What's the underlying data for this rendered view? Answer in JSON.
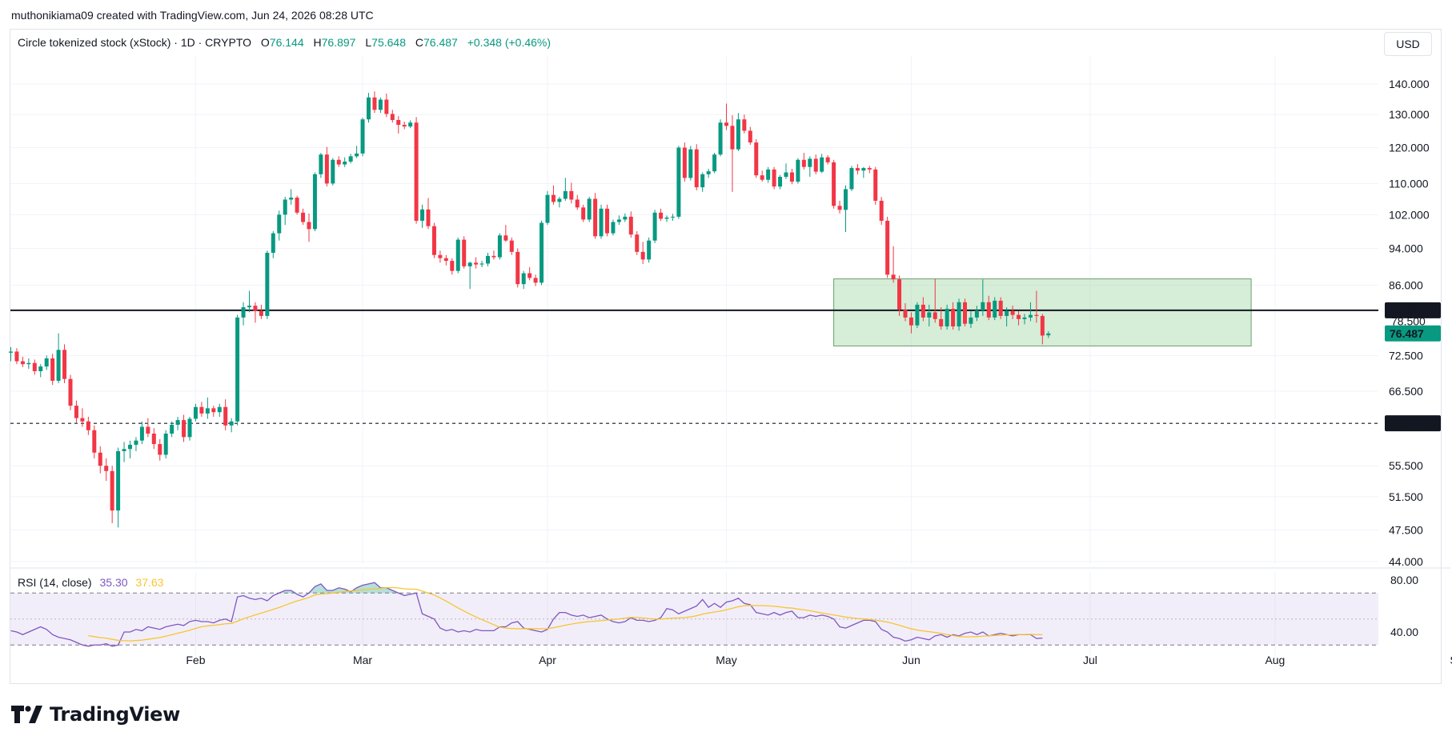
{
  "header": {
    "credit": "muthonikiama09 created with TradingView.com, Jun 24, 2026 08:28 UTC"
  },
  "legend": {
    "symbol": "Circle tokenized stock (xStock) · 1D · CRYPTO",
    "open_label": "O",
    "open": "76.144",
    "high_label": "H",
    "high": "76.897",
    "low_label": "L",
    "low": "75.648",
    "close_label": "C",
    "close": "76.487",
    "change": "+0.348 (+0.46%)"
  },
  "currency": "USD",
  "rsi": {
    "title": "RSI (14, close)",
    "value": "35.30",
    "ma_value": "37.63",
    "ticks": [
      "80.00",
      "40.00"
    ]
  },
  "brand": {
    "name": "TradingView"
  },
  "colors": {
    "up": "#089981",
    "down": "#f23645",
    "rsi": "#7e57c2",
    "rsi_ma": "#f7c531",
    "zone": "#a5d6a7"
  },
  "chart_data": {
    "type": "candlestick",
    "y_scale": "log",
    "y_ticks": [
      "140.000",
      "130.000",
      "120.000",
      "110.000",
      "102.000",
      "94.000",
      "86.000",
      "72.500",
      "66.500",
      "55.500",
      "51.500",
      "47.500",
      "44.000"
    ],
    "x_ticks": [
      "Feb",
      "Mar",
      "Apr",
      "May",
      "Jun",
      "Jul",
      "Aug",
      "Sep"
    ],
    "price_labels": {
      "resistance": "80.898",
      "last": "76.487",
      "support": "61.514",
      "hidden": "78.500"
    },
    "horizontal_lines": [
      {
        "value": 80.898,
        "style": "solid"
      },
      {
        "value": 61.514,
        "style": "dashed"
      }
    ],
    "zone": {
      "from": "2026-05-19",
      "to": "2026-07-28",
      "low": 74.2,
      "high": 87.3
    },
    "ohlc": [
      [
        "2026-01-01",
        73,
        74,
        71.5,
        73.2
      ],
      [
        "2026-01-02",
        73.2,
        73.8,
        71,
        71.5
      ],
      [
        "2026-01-03",
        71.5,
        72.3,
        70.5,
        71
      ],
      [
        "2026-01-04",
        71,
        72,
        70.2,
        71.2
      ],
      [
        "2026-01-05",
        71.2,
        71.8,
        69.2,
        69.8
      ],
      [
        "2026-01-06",
        69.8,
        71,
        68.8,
        70.6
      ],
      [
        "2026-01-07",
        70.6,
        72.5,
        70,
        72
      ],
      [
        "2026-01-08",
        72,
        72.8,
        67.5,
        68.2
      ],
      [
        "2026-01-09",
        68.2,
        76.5,
        67.8,
        73.5
      ],
      [
        "2026-01-10",
        73.5,
        74.5,
        67.8,
        68.5
      ],
      [
        "2026-01-11",
        68.5,
        69.2,
        63.5,
        64.2
      ],
      [
        "2026-01-12",
        64.2,
        65,
        61.5,
        62.3
      ],
      [
        "2026-01-13",
        62.3,
        63.8,
        61,
        61.8
      ],
      [
        "2026-01-14",
        61.8,
        62.5,
        59.8,
        60.5
      ],
      [
        "2026-01-15",
        60.5,
        61.2,
        56.5,
        57.3
      ],
      [
        "2026-01-16",
        57.3,
        58.2,
        54.5,
        55.5
      ],
      [
        "2026-01-17",
        55.5,
        56.5,
        53.5,
        54.8
      ],
      [
        "2026-01-18",
        54.8,
        55.5,
        48.3,
        49.8
      ],
      [
        "2026-01-19",
        49.8,
        58,
        47.8,
        57.5
      ],
      [
        "2026-01-20",
        57.5,
        58.8,
        56,
        57.8
      ],
      [
        "2026-01-21",
        57.8,
        59,
        56.5,
        58.4
      ],
      [
        "2026-01-22",
        58.4,
        59.5,
        57.5,
        59
      ],
      [
        "2026-01-23",
        59,
        61.8,
        58.5,
        61
      ],
      [
        "2026-01-24",
        61,
        62.3,
        59.5,
        60
      ],
      [
        "2026-01-25",
        60,
        60.8,
        57.8,
        58.5
      ],
      [
        "2026-01-26",
        58.5,
        59.2,
        56.2,
        57
      ],
      [
        "2026-01-27",
        57,
        60.5,
        56.5,
        60
      ],
      [
        "2026-01-28",
        60,
        61.8,
        59.5,
        61.3
      ],
      [
        "2026-01-29",
        61.3,
        62.5,
        60.5,
        62
      ],
      [
        "2026-01-30",
        62,
        62.8,
        58.8,
        59.5
      ],
      [
        "2026-01-31",
        59.5,
        62.5,
        59,
        62.2
      ],
      [
        "2026-02-01",
        62.2,
        64.5,
        61.8,
        64
      ],
      [
        "2026-02-02",
        64,
        64.8,
        62.5,
        63
      ],
      [
        "2026-02-03",
        63,
        65.5,
        62.2,
        63.8
      ],
      [
        "2026-02-04",
        63.8,
        64.2,
        62.5,
        63.2
      ],
      [
        "2026-02-05",
        63.2,
        64.5,
        62.5,
        64
      ],
      [
        "2026-02-06",
        64,
        65.2,
        60.5,
        61.2
      ],
      [
        "2026-02-07",
        61.2,
        62.3,
        60.2,
        61.8
      ],
      [
        "2026-02-08",
        61.8,
        80,
        61.2,
        79.5
      ],
      [
        "2026-02-09",
        79.5,
        82.5,
        78,
        81.5
      ],
      [
        "2026-02-10",
        81.5,
        84.8,
        80.5,
        81.8
      ],
      [
        "2026-02-11",
        81.8,
        82.5,
        78.5,
        80.8
      ],
      [
        "2026-02-12",
        80.8,
        82,
        79.2,
        79.8
      ],
      [
        "2026-02-13",
        79.8,
        93.5,
        79.2,
        93
      ],
      [
        "2026-02-14",
        93,
        98,
        91.8,
        97.5
      ],
      [
        "2026-02-15",
        97.5,
        103,
        95.8,
        102
      ],
      [
        "2026-02-16",
        102,
        106.5,
        99.5,
        105.8
      ],
      [
        "2026-02-17",
        105.8,
        108.5,
        104.5,
        106.3
      ],
      [
        "2026-02-18",
        106.3,
        106.8,
        102,
        102.5
      ],
      [
        "2026-02-19",
        102.5,
        103.5,
        99.5,
        100.2
      ],
      [
        "2026-02-20",
        100.2,
        102.3,
        95.5,
        98.5
      ],
      [
        "2026-02-21",
        98.5,
        113,
        98,
        112.5
      ],
      [
        "2026-02-22",
        112.5,
        118.5,
        111.5,
        118
      ],
      [
        "2026-02-23",
        118,
        120.2,
        109.2,
        110
      ],
      [
        "2026-02-24",
        110,
        117,
        109.5,
        116.5
      ],
      [
        "2026-02-25",
        116.5,
        117.5,
        114.5,
        115.2
      ],
      [
        "2026-02-26",
        115.2,
        117.2,
        114.5,
        116
      ],
      [
        "2026-02-27",
        116,
        118.2,
        115.5,
        117.5
      ],
      [
        "2026-02-28",
        117.5,
        120.5,
        117,
        118.3
      ],
      [
        "2026-03-01",
        118.3,
        129,
        117.5,
        128.5
      ],
      [
        "2026-03-02",
        128.5,
        137,
        127.5,
        135.5
      ],
      [
        "2026-03-03",
        135.5,
        137.5,
        130.5,
        131.5
      ],
      [
        "2026-03-04",
        131.5,
        135.5,
        130.5,
        134.8
      ],
      [
        "2026-03-05",
        134.8,
        136.8,
        129.2,
        130.2
      ],
      [
        "2026-03-06",
        130.2,
        131.5,
        127.5,
        128.3
      ],
      [
        "2026-03-07",
        128.3,
        129.5,
        124.2,
        126.8
      ],
      [
        "2026-03-08",
        126.8,
        127.8,
        125.5,
        126.3
      ],
      [
        "2026-03-09",
        126.3,
        128.2,
        125.8,
        127.5
      ],
      [
        "2026-03-10",
        127.5,
        129.2,
        99.8,
        100.5
      ],
      [
        "2026-03-11",
        100.5,
        104.5,
        98.8,
        103.3
      ],
      [
        "2026-03-12",
        103.3,
        106.2,
        98.5,
        99.2
      ],
      [
        "2026-03-13",
        99.2,
        100,
        91.8,
        92.5
      ],
      [
        "2026-03-14",
        92.5,
        93.5,
        90.8,
        91.8
      ],
      [
        "2026-03-15",
        91.8,
        92.5,
        90.2,
        91.2
      ],
      [
        "2026-03-16",
        91.2,
        91.8,
        88.2,
        89
      ],
      [
        "2026-03-17",
        89,
        96.5,
        88.5,
        96
      ],
      [
        "2026-03-18",
        96,
        96.8,
        89.5,
        90
      ],
      [
        "2026-03-19",
        90,
        91,
        85.2,
        90.8
      ],
      [
        "2026-03-20",
        90.8,
        92,
        89.5,
        90.4
      ],
      [
        "2026-03-21",
        90.4,
        91.2,
        89.8,
        90.6
      ],
      [
        "2026-03-22",
        90.6,
        93,
        90,
        92.3
      ],
      [
        "2026-03-23",
        92.3,
        93.5,
        91.5,
        92
      ],
      [
        "2026-03-24",
        92,
        97.5,
        91.5,
        97
      ],
      [
        "2026-03-25",
        97,
        99.5,
        95.5,
        95.8
      ],
      [
        "2026-03-26",
        95.8,
        96.5,
        92.5,
        93.2
      ],
      [
        "2026-03-27",
        93.2,
        94,
        85.5,
        86.2
      ],
      [
        "2026-03-28",
        86.2,
        89,
        85.2,
        88.5
      ],
      [
        "2026-03-29",
        88.5,
        89.8,
        87,
        87.5
      ],
      [
        "2026-03-30",
        87.5,
        88.2,
        85.8,
        86.5
      ],
      [
        "2026-03-31",
        86.5,
        100.5,
        86,
        100
      ],
      [
        "2026-04-01",
        100,
        108,
        99.5,
        107
      ],
      [
        "2026-04-02",
        107,
        109.5,
        104.5,
        105.2
      ],
      [
        "2026-04-03",
        105.2,
        106.5,
        103.8,
        106
      ],
      [
        "2026-04-04",
        106,
        111.5,
        105.5,
        108
      ],
      [
        "2026-04-05",
        108,
        110.2,
        104.8,
        105.8
      ],
      [
        "2026-04-06",
        105.8,
        107,
        103.2,
        103.8
      ],
      [
        "2026-04-07",
        103.8,
        104.5,
        100.2,
        100.8
      ],
      [
        "2026-04-08",
        100.8,
        106.5,
        100.2,
        106
      ],
      [
        "2026-04-09",
        106,
        107.5,
        96.2,
        96.8
      ],
      [
        "2026-04-10",
        96.8,
        104.5,
        96.2,
        103.5
      ],
      [
        "2026-04-11",
        103.5,
        104.5,
        96.8,
        97.5
      ],
      [
        "2026-04-12",
        97.5,
        100.8,
        97,
        100.2
      ],
      [
        "2026-04-13",
        100.2,
        101.8,
        99.5,
        100.8
      ],
      [
        "2026-04-14",
        100.8,
        102.3,
        100.2,
        101.5
      ],
      [
        "2026-04-15",
        101.5,
        102.8,
        96.5,
        97.2
      ],
      [
        "2026-04-16",
        97.2,
        98,
        92.5,
        93.2
      ],
      [
        "2026-04-17",
        93.2,
        95.5,
        90.5,
        91.5
      ],
      [
        "2026-04-18",
        91.5,
        96.5,
        90.8,
        95.8
      ],
      [
        "2026-04-19",
        95.8,
        103.2,
        95.2,
        102.5
      ],
      [
        "2026-04-20",
        102.5,
        103.5,
        100.5,
        101
      ],
      [
        "2026-04-21",
        101,
        101.8,
        100.2,
        101.3
      ],
      [
        "2026-04-22",
        101.3,
        102.2,
        100.5,
        101.5
      ],
      [
        "2026-04-23",
        101.5,
        120.5,
        101,
        120
      ],
      [
        "2026-04-24",
        120,
        121.5,
        110.5,
        111.5
      ],
      [
        "2026-04-25",
        111.5,
        120.5,
        110.8,
        119.5
      ],
      [
        "2026-04-26",
        119.5,
        121,
        108.2,
        109
      ],
      [
        "2026-04-27",
        109,
        113,
        107.8,
        112.5
      ],
      [
        "2026-04-28",
        112.5,
        114,
        111.5,
        113.3
      ],
      [
        "2026-04-29",
        113.3,
        118.5,
        112.8,
        118
      ],
      [
        "2026-04-30",
        118,
        128.5,
        117.5,
        127.5
      ],
      [
        "2026-05-01",
        127.5,
        133.5,
        125.2,
        126.5
      ],
      [
        "2026-05-02",
        126.5,
        129.8,
        107.8,
        119.5
      ],
      [
        "2026-05-03",
        119.5,
        130.5,
        119,
        128.5
      ],
      [
        "2026-05-04",
        128.5,
        130,
        124.2,
        125
      ],
      [
        "2026-05-05",
        125,
        126.2,
        120.8,
        121.5
      ],
      [
        "2026-05-06",
        121.5,
        122.5,
        111.5,
        112.2
      ],
      [
        "2026-05-07",
        112.2,
        113.5,
        110.5,
        111
      ],
      [
        "2026-05-08",
        111,
        114.5,
        110.2,
        113.8
      ],
      [
        "2026-05-09",
        113.8,
        114.5,
        108.5,
        109.2
      ],
      [
        "2026-05-10",
        109.2,
        112.3,
        108.5,
        111.8
      ],
      [
        "2026-05-11",
        111.8,
        115.5,
        111.2,
        113
      ],
      [
        "2026-05-12",
        113,
        114,
        109.8,
        110.5
      ],
      [
        "2026-05-13",
        110.5,
        117,
        110,
        116.5
      ],
      [
        "2026-05-14",
        116.5,
        118.5,
        113.8,
        114.5
      ],
      [
        "2026-05-15",
        114.5,
        117.5,
        111.8,
        116.8
      ],
      [
        "2026-05-16",
        116.8,
        118,
        112.5,
        113.2
      ],
      [
        "2026-05-17",
        113.2,
        118.2,
        112.8,
        117.2
      ],
      [
        "2026-05-18",
        117.2,
        117.8,
        115.2,
        115.8
      ],
      [
        "2026-05-19",
        115.8,
        116.5,
        103.5,
        104.2
      ],
      [
        "2026-05-20",
        104.2,
        105.5,
        102.3,
        103.2
      ],
      [
        "2026-05-21",
        103.2,
        109.5,
        97.8,
        108.5
      ],
      [
        "2026-05-22",
        108.5,
        114.8,
        108,
        114.2
      ],
      [
        "2026-05-23",
        114.2,
        115.3,
        112.5,
        113.5
      ],
      [
        "2026-05-24",
        113.5,
        114.5,
        111.5,
        114.2
      ],
      [
        "2026-05-25",
        114.2,
        114.8,
        112.8,
        113.8
      ],
      [
        "2026-05-26",
        113.8,
        114.5,
        104.5,
        105.5
      ],
      [
        "2026-05-27",
        105.5,
        106.5,
        99.5,
        100.5
      ],
      [
        "2026-05-28",
        100.5,
        101.5,
        87.5,
        88.2
      ],
      [
        "2026-05-29",
        88.2,
        94.5,
        86.5,
        87.2
      ],
      [
        "2026-05-30",
        87.2,
        88,
        79.8,
        81
      ],
      [
        "2026-05-31",
        81,
        82.3,
        78.8,
        79.5
      ],
      [
        "2026-06-01",
        79.5,
        80.5,
        76.5,
        78
      ],
      [
        "2026-06-02",
        78,
        82.5,
        77.5,
        82
      ],
      [
        "2026-06-03",
        82,
        83.5,
        78.8,
        79.5
      ],
      [
        "2026-06-04",
        79.5,
        82,
        77.8,
        80.5
      ],
      [
        "2026-06-05",
        80.5,
        87.3,
        78.5,
        79.2
      ],
      [
        "2026-06-06",
        79.2,
        81.5,
        77.2,
        77.8
      ],
      [
        "2026-06-07",
        77.8,
        82,
        77.2,
        81.2
      ],
      [
        "2026-06-08",
        81.2,
        82.5,
        77.2,
        77.8
      ],
      [
        "2026-06-09",
        77.8,
        83.2,
        77,
        82.5
      ],
      [
        "2026-06-10",
        82.5,
        83.2,
        77.8,
        78.3
      ],
      [
        "2026-06-11",
        78.3,
        80.8,
        77.5,
        79.5
      ],
      [
        "2026-06-12",
        79.5,
        81.8,
        78.8,
        80.9
      ],
      [
        "2026-06-13",
        80.9,
        87.2,
        79.8,
        82.5
      ],
      [
        "2026-06-14",
        82.5,
        83.8,
        79,
        79.5
      ],
      [
        "2026-06-15",
        79.5,
        83.5,
        79,
        82.8
      ],
      [
        "2026-06-16",
        82.8,
        83.5,
        79.2,
        79.8
      ],
      [
        "2026-06-17",
        79.8,
        81.5,
        77.8,
        80.8
      ],
      [
        "2026-06-18",
        80.8,
        81.8,
        79.2,
        80
      ],
      [
        "2026-06-19",
        80,
        80.8,
        78,
        79.2
      ],
      [
        "2026-06-20",
        79.2,
        80.2,
        78.2,
        79.5
      ],
      [
        "2026-06-21",
        79.5,
        82.5,
        78.8,
        80
      ],
      [
        "2026-06-22",
        80,
        84.8,
        78.5,
        79.8
      ],
      [
        "2026-06-23",
        79.8,
        80.2,
        74.5,
        76.1
      ],
      [
        "2026-06-24",
        76.144,
        76.897,
        75.648,
        76.487
      ]
    ],
    "rsi_series": [
      41,
      40,
      38,
      40,
      42,
      44,
      42,
      38,
      36,
      35,
      34,
      32,
      30,
      29,
      30,
      30,
      31,
      29,
      30,
      40,
      40,
      42,
      41,
      44,
      43,
      42,
      44,
      45,
      46,
      45,
      48,
      49,
      48,
      48,
      47,
      49,
      50,
      48,
      67,
      68,
      66,
      65,
      66,
      64,
      68,
      70,
      72,
      72,
      69,
      67,
      70,
      75,
      77,
      72,
      72,
      74,
      73,
      71,
      74,
      76,
      77,
      78,
      74,
      74,
      72,
      70,
      68,
      69,
      70,
      54,
      52,
      50,
      43,
      41,
      42,
      40,
      41,
      40,
      42,
      41,
      41,
      41,
      44,
      44,
      47,
      48,
      43,
      42,
      41,
      40,
      42,
      50,
      55,
      55,
      53,
      52,
      53,
      51,
      52,
      53,
      50,
      48,
      47,
      48,
      51,
      49,
      49,
      48,
      49,
      51,
      58,
      57,
      54,
      56,
      58,
      60,
      65,
      59,
      62,
      59,
      63,
      64,
      66,
      62,
      61,
      55,
      54,
      53,
      55,
      53,
      55,
      56,
      51,
      51,
      53,
      52,
      53,
      52,
      50,
      44,
      43,
      45,
      47,
      49,
      49,
      48,
      42,
      40,
      36,
      35,
      33,
      34,
      36,
      35,
      34,
      37,
      38,
      36,
      38,
      37,
      39,
      40,
      38,
      40,
      37,
      38,
      39,
      38,
      37,
      38,
      38,
      38,
      35,
      35.3
    ],
    "rsi_ma_start_index": 13
  }
}
